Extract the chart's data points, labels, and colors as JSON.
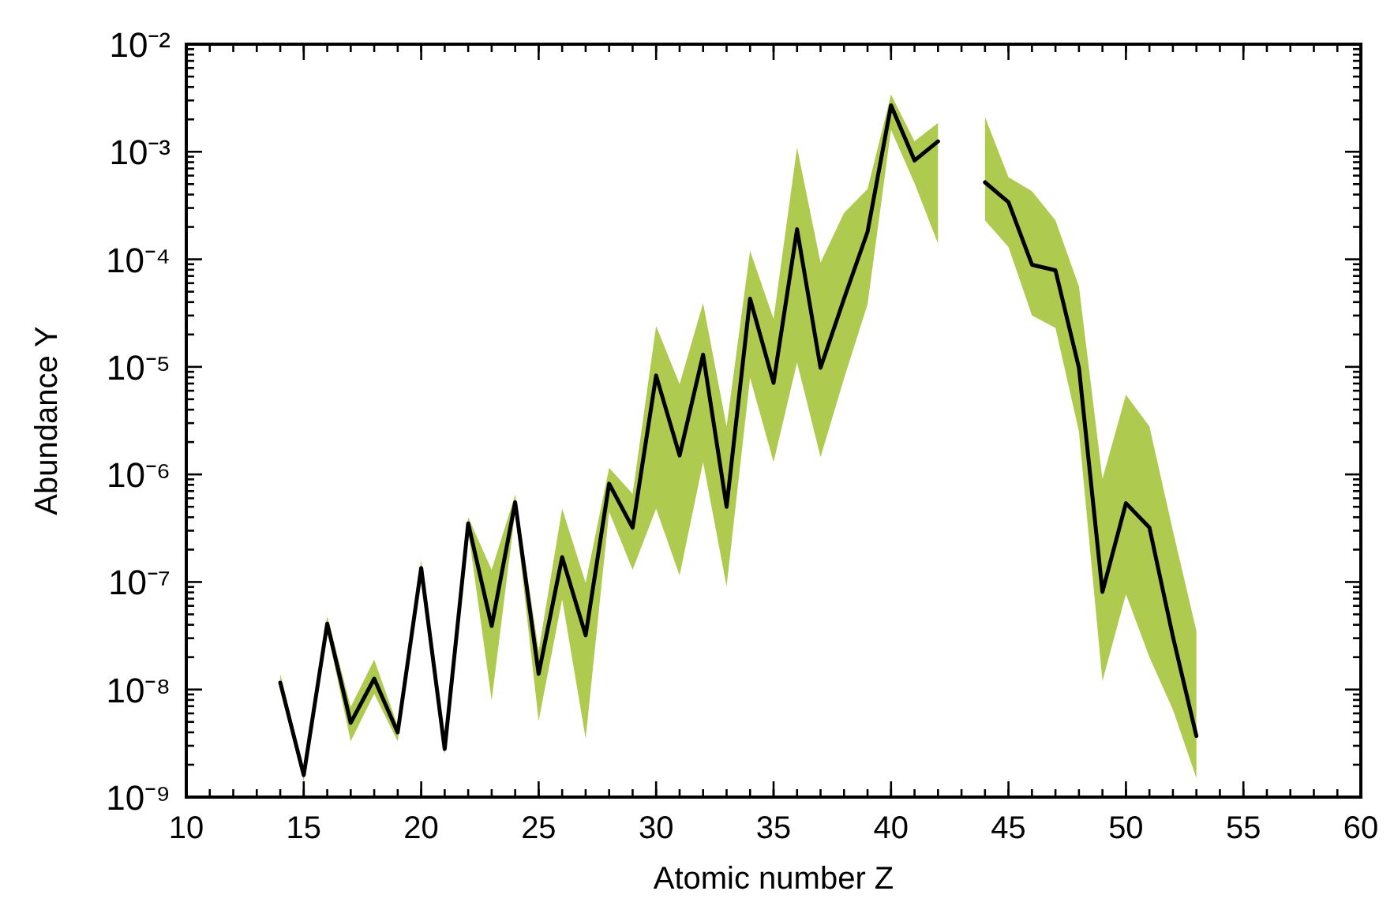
{
  "chart_data": {
    "type": "line",
    "xlabel": "Atomic number Z",
    "ylabel": "Abundance Y",
    "log": "y",
    "grid": false,
    "marker": "none",
    "line_style": "solid",
    "x": [
      14,
      15,
      16,
      17,
      18,
      19,
      20,
      21,
      22,
      23,
      24,
      25,
      26,
      27,
      28,
      29,
      30,
      31,
      32,
      33,
      34,
      35,
      36,
      37,
      38,
      39,
      40,
      41,
      42,
      44,
      45,
      46,
      47,
      48,
      49,
      50,
      51,
      52,
      53
    ],
    "xlim": [
      10,
      60
    ],
    "xticks": [
      10,
      15,
      20,
      25,
      30,
      35,
      40,
      45,
      50,
      55,
      60
    ],
    "ylim": [
      1e-09,
      0.01
    ],
    "yticks": [
      {
        "value": 1e-09,
        "label": "10⁻⁹"
      },
      {
        "value": 1e-08,
        "label": "10⁻⁸"
      },
      {
        "value": 1e-07,
        "label": "10⁻⁷"
      },
      {
        "value": 1e-06,
        "label": "10⁻⁶"
      },
      {
        "value": 1e-05,
        "label": "10⁻⁵"
      },
      {
        "value": 0.0001,
        "label": "10⁻⁴"
      },
      {
        "value": 0.001,
        "label": "10⁻³"
      },
      {
        "value": 0.01,
        "label": "10⁻²"
      }
    ],
    "series": [
      {
        "type": "line",
        "color": "#000000",
        "values": [
          1.16e-08,
          1.6e-09,
          4.1e-08,
          4.9e-09,
          1.26e-08,
          4e-09,
          1.35e-07,
          2.8e-09,
          3.5e-07,
          3.9e-08,
          5.5e-07,
          1.4e-08,
          1.7e-07,
          3.2e-08,
          8.2e-07,
          3.2e-07,
          8.3e-06,
          1.5e-06,
          1.3e-05,
          5e-07,
          4.3e-05,
          7.1e-06,
          0.00019,
          9.8e-06,
          4.3e-05,
          0.00018,
          0.0027,
          0.00083,
          0.00125,
          0.00052,
          0.00034,
          8.9e-05,
          7.9e-05,
          9.8e-06,
          8.1e-08,
          5.4e-07,
          3.2e-07,
          3.1e-08,
          3.7e-09
        ],
        "lower": [
          1e-08,
          1.4e-09,
          3.5e-08,
          3.3e-09,
          9.1e-09,
          3.3e-09,
          1.2e-07,
          2.5e-09,
          3e-07,
          7.9e-09,
          4.5e-07,
          5.1e-09,
          6.9e-08,
          3.5e-09,
          4.5e-07,
          1.3e-07,
          4.8e-07,
          1.15e-07,
          1.3e-06,
          9.1e-08,
          7.9e-06,
          1.3e-06,
          1.1e-05,
          1.45e-06,
          7.8e-06,
          3.8e-05,
          0.0016,
          0.00051,
          0.00014,
          0.00023,
          0.00013,
          3e-05,
          2.3e-05,
          2.5e-06,
          1.2e-08,
          7.7e-08,
          2e-08,
          6.5e-09,
          1.5e-09
        ],
        "upper": [
          1.4e-08,
          1.8e-09,
          4.8e-08,
          6.9e-09,
          1.9e-08,
          4.6e-09,
          1.6e-07,
          3.1e-09,
          4e-07,
          1.3e-07,
          6.5e-07,
          2.3e-08,
          4.8e-07,
          9.8e-08,
          1.15e-06,
          6.6e-07,
          2.4e-05,
          6.9e-06,
          3.9e-05,
          2.8e-06,
          0.00012,
          2.8e-05,
          0.0011,
          9.3e-05,
          0.00027,
          0.00045,
          0.0034,
          0.00125,
          0.00185,
          0.0021,
          0.00058,
          0.00043,
          0.00023,
          5.6e-05,
          9.1e-07,
          5.5e-06,
          2.8e-06,
          3e-07,
          3.5e-08
        ]
      }
    ]
  }
}
